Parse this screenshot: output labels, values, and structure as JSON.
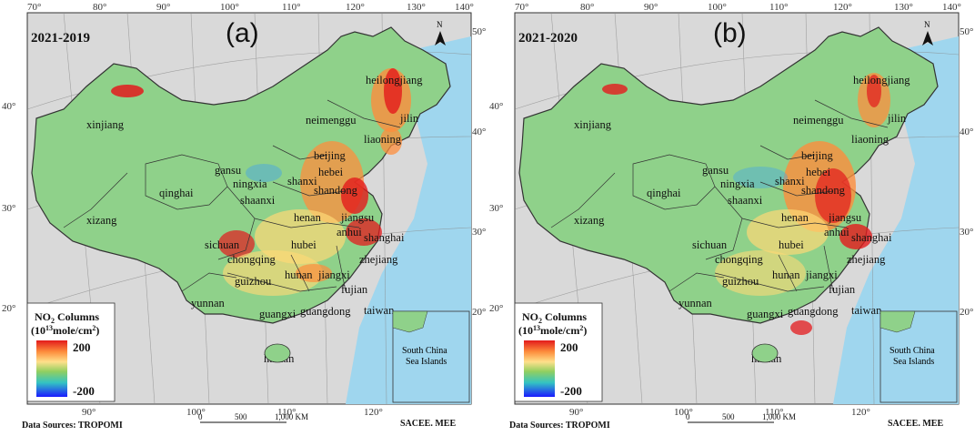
{
  "panels": [
    {
      "id": "a",
      "letter": "(a)",
      "year_label": "2021-2019",
      "provinces": [
        "xinjiang",
        "xizang",
        "qinghai",
        "gansu",
        "ningxia",
        "shanxi",
        "shaanxi",
        "neimenggu",
        "heilongjiang",
        "jilin",
        "liaoning",
        "beijing",
        "hebei",
        "shandong",
        "henan",
        "jiangsu",
        "anhui",
        "shanghai",
        "sichuan",
        "hubei",
        "chongqing",
        "zhejiang",
        "guizhou",
        "hunan",
        "jiangxi",
        "yunnan",
        "fujian",
        "guangxi",
        "guangdong",
        "taiwan",
        "hainan"
      ],
      "inset_label": [
        "South China",
        "Sea Islands"
      ]
    },
    {
      "id": "b",
      "letter": "(b)",
      "year_label": "2021-2020",
      "provinces": [
        "xinjiang",
        "xizang",
        "qinghai",
        "gansu",
        "ningxia",
        "shanxi",
        "shaanxi",
        "neimenggu",
        "heilongjiang",
        "jilin",
        "liaoning",
        "beijing",
        "hebei",
        "shandong",
        "henan",
        "jiangsu",
        "anhui",
        "shanghai",
        "sichuan",
        "hubei",
        "chongqing",
        "zhejiang",
        "guizhou",
        "hunan",
        "jiangxi",
        "yunnan",
        "fujian",
        "guangxi",
        "guangdong",
        "taiwan",
        "hainan"
      ],
      "inset_label": [
        "South China",
        "Sea Islands"
      ]
    }
  ],
  "lon_ticks_top": [
    "70°",
    "80°",
    "90°",
    "100°",
    "110°",
    "120°",
    "130°",
    "140°"
  ],
  "lon_ticks_bottom": [
    "90°",
    "100°",
    "110°",
    "120°"
  ],
  "lat_ticks_left": [
    "40°",
    "30°",
    "20°"
  ],
  "lat_ticks_right": [
    "50°",
    "40°",
    "30°",
    "20°"
  ],
  "north_label": "N",
  "legend": {
    "title_prefix": "NO",
    "title_sub": "2",
    "title_suffix": " Columns",
    "unit_open": "(10",
    "unit_sup": "13",
    "unit_mid": "mole/cm",
    "unit_sup2": "2",
    "unit_close": ")",
    "max": "200",
    "min": "-200"
  },
  "footer": {
    "source": "Data Sources:  TROPOMI",
    "credit": "SACEE. MEE",
    "scale_ticks": [
      "0",
      "500",
      "1,000 KM"
    ]
  },
  "colors": {
    "land_bg": "#d9d9d9",
    "sea": "#9fd6ee",
    "map_green": "#8fd18a",
    "hotspot_red": "#e31a1c",
    "hotspot_orange": "#fd8d3c",
    "hotspot_yellow": "#fed976",
    "decrease_blue": "#4aa8e0"
  }
}
